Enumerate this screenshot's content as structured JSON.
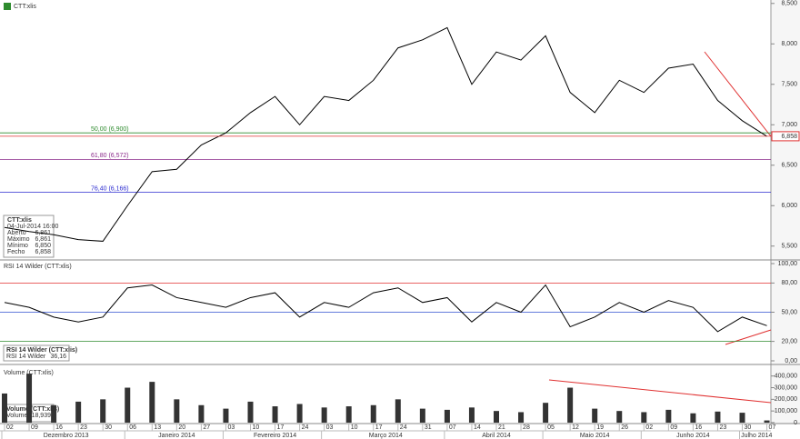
{
  "chart_data": [
    {
      "type": "line",
      "title": "CTT:xlis",
      "categories": [
        "02",
        "09",
        "16",
        "23",
        "30",
        "06",
        "13",
        "20",
        "27",
        "03",
        "10",
        "17",
        "24",
        "03",
        "10",
        "17",
        "24",
        "31",
        "07",
        "14",
        "21",
        "28",
        "05",
        "12",
        "19",
        "26",
        "02",
        "09",
        "16",
        "23",
        "30",
        "07"
      ],
      "months": [
        {
          "label": "Dezembro 2013",
          "start": 0
        },
        {
          "label": "Janeiro 2014",
          "start": 5
        },
        {
          "label": "Fevereiro 2014",
          "start": 9
        },
        {
          "label": "Março 2014",
          "start": 13
        },
        {
          "label": "Abril 2014",
          "start": 18
        },
        {
          "label": "Maio 2014",
          "start": 22
        },
        {
          "label": "Junho 2014",
          "start": 26
        },
        {
          "label": "Julho 2014",
          "start": 30
        }
      ],
      "series": [
        {
          "name": "CTT:xlis",
          "color": "#000000",
          "values": [
            5730,
            5680,
            5640,
            5580,
            5560,
            6000,
            6420,
            6450,
            6750,
            6900,
            7150,
            7350,
            7000,
            7350,
            7300,
            7550,
            7950,
            8050,
            8200,
            7500,
            7900,
            7800,
            8100,
            7400,
            7150,
            7550,
            7400,
            7700,
            7750,
            7300,
            7050,
            6858
          ]
        }
      ],
      "ylim": [
        5340,
        8520
      ],
      "yticks": [
        {
          "value": 5500,
          "label": "5,500"
        },
        {
          "value": 6000,
          "label": "6,000"
        },
        {
          "value": 6500,
          "label": "6,500"
        },
        {
          "value": 7000,
          "label": "7,000"
        },
        {
          "value": 7500,
          "label": "7,500"
        },
        {
          "value": 8000,
          "label": "8,000"
        },
        {
          "value": 8500,
          "label": "8,500"
        }
      ],
      "levels": [
        {
          "label": "50,00 (6,900)",
          "value": 6900,
          "color": "#2e8b2e"
        },
        {
          "label": "61,80 (6,572)",
          "value": 6572,
          "color": "#8b2b8b"
        },
        {
          "label": "76,40 (6,166)",
          "value": 6166,
          "color": "#2b2bd0"
        }
      ],
      "last_price": {
        "value": 6858,
        "label": "6,858",
        "color": "#e03030"
      },
      "info": {
        "title": "CTT:xlis",
        "date": "04-Jul-2014 16:00",
        "rows": [
          [
            "Aberto",
            "6,861"
          ],
          [
            "Máximo",
            "6,861"
          ],
          [
            "Mínimo",
            "6,850"
          ],
          [
            "Fecho",
            "6,858"
          ]
        ]
      }
    },
    {
      "type": "line",
      "title": "RSI 14 Wilder (CTT:xlis)",
      "series": [
        {
          "name": "RSI 14 Wilder",
          "color": "#000000",
          "values": [
            60,
            55,
            45,
            40,
            45,
            75,
            78,
            65,
            60,
            55,
            65,
            70,
            45,
            60,
            55,
            70,
            75,
            60,
            65,
            40,
            60,
            50,
            78,
            35,
            45,
            60,
            50,
            62,
            55,
            30,
            45,
            36.16
          ],
          "value_labels": [
            null,
            null,
            null,
            null,
            null,
            null,
            null,
            null,
            null,
            null,
            null,
            null,
            null,
            null,
            null,
            null,
            null,
            null,
            null,
            null,
            null,
            null,
            null,
            null,
            null,
            null,
            null,
            null,
            null,
            null,
            null,
            "36,16"
          ]
        }
      ],
      "ylim": [
        0,
        100
      ],
      "yticks": [
        {
          "value": 0,
          "label": "0,00"
        },
        {
          "value": 20,
          "label": "20,00"
        },
        {
          "value": 50,
          "label": "50,00"
        },
        {
          "value": 80,
          "label": "80,00"
        },
        {
          "value": 100,
          "label": "100,00"
        }
      ],
      "levels": [
        {
          "value": 80,
          "color": "#e03030"
        },
        {
          "value": 50,
          "color": "#3050d0"
        },
        {
          "value": 20,
          "color": "#2e8b2e"
        }
      ]
    },
    {
      "type": "bar",
      "title": "Volume (CTT:xlis)",
      "series": [
        {
          "name": "Volume",
          "color": "#333333",
          "values": [
            250000,
            420000,
            150000,
            180000,
            200000,
            300000,
            350000,
            200000,
            150000,
            120000,
            180000,
            140000,
            160000,
            130000,
            140000,
            150000,
            200000,
            120000,
            110000,
            130000,
            100000,
            90000,
            170000,
            300000,
            120000,
            100000,
            90000,
            110000,
            80000,
            95000,
            85000,
            18939
          ],
          "value_labels": [
            null,
            null,
            null,
            null,
            null,
            null,
            null,
            null,
            null,
            null,
            null,
            null,
            null,
            null,
            null,
            null,
            null,
            null,
            null,
            null,
            null,
            null,
            null,
            null,
            null,
            null,
            null,
            null,
            null,
            null,
            null,
            "18,939"
          ]
        }
      ],
      "ylim": [
        0,
        460000
      ],
      "yticks": [
        {
          "value": 0,
          "label": "0"
        },
        {
          "value": 100000,
          "label": "100,000"
        },
        {
          "value": 200000,
          "label": "200,000"
        },
        {
          "value": 300000,
          "label": "300,000"
        },
        {
          "value": 400000,
          "label": "400,000"
        }
      ]
    }
  ]
}
